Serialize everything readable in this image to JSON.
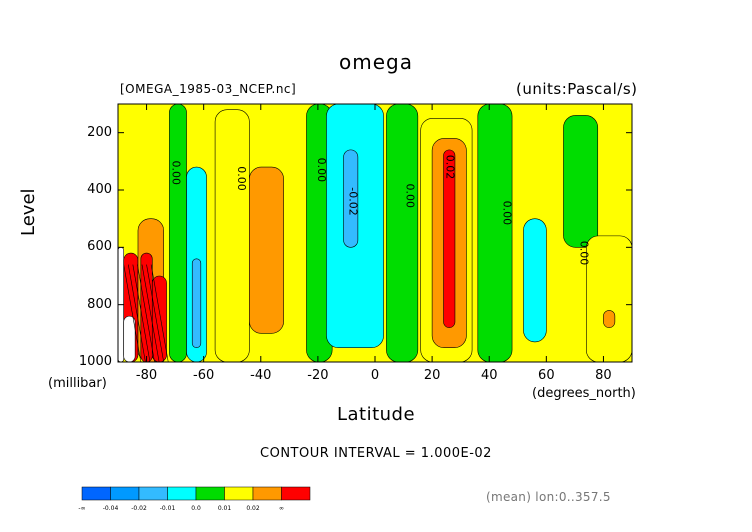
{
  "chart_data": {
    "type": "heatmap",
    "title": "omega",
    "file_label": "[OMEGA_1985-03_NCEP.nc]",
    "units_label": "(units:Pascal/s)",
    "xlabel": "Latitude",
    "x_unit": "(degrees_north)",
    "ylabel": "Level",
    "y_unit": "(millibar)",
    "xlim": [
      -90,
      90
    ],
    "ylim": [
      1000,
      100
    ],
    "x_ticks": [
      "-80",
      "-60",
      "-40",
      "-20",
      "0",
      "20",
      "40",
      "60",
      "80"
    ],
    "y_ticks": [
      "200",
      "400",
      "600",
      "800",
      "1000"
    ],
    "contour_interval": "CONTOUR INTERVAL = 1.000E-02",
    "footer": "(mean) lon:0..357.5",
    "contour_labels": [
      {
        "text": "0.00",
        "lat": -71,
        "level": 340
      },
      {
        "text": "0.00",
        "lat": -48,
        "level": 360
      },
      {
        "text": "0.00",
        "lat": -20,
        "level": 330
      },
      {
        "text": "-0.02",
        "lat": -9,
        "level": 440
      },
      {
        "text": "0.00",
        "lat": 11,
        "level": 420
      },
      {
        "text": "0.02",
        "lat": 25,
        "level": 320
      },
      {
        "text": "0.00",
        "lat": 45,
        "level": 480
      },
      {
        "text": "0.00",
        "lat": 72,
        "level": 620
      }
    ],
    "colorbar": {
      "labels": [
        "-∞",
        "-0.04",
        "-0.02",
        "-0.01",
        "0.0",
        "0.01",
        "0.02",
        "∞"
      ],
      "colors": [
        "#0066ff",
        "#0099ff",
        "#33bbff",
        "#00ffff",
        "#00dd00",
        "#ffff00",
        "#ff9900",
        "#ff0000"
      ]
    },
    "bands": [
      {
        "lat": [
          -90,
          -88
        ],
        "level": [
          600,
          1000
        ],
        "color": "#ffffff"
      },
      {
        "lat": [
          -88,
          -83
        ],
        "level": [
          620,
          1000
        ],
        "color": "#ff0000"
      },
      {
        "lat": [
          -88,
          -84
        ],
        "level": [
          840,
          1000
        ],
        "color": "#ffffff"
      },
      {
        "lat": [
          -83,
          -74
        ],
        "level": [
          500,
          1000
        ],
        "color": "#ff9900"
      },
      {
        "lat": [
          -82,
          -78
        ],
        "level": [
          620,
          1000
        ],
        "color": "#ff0000"
      },
      {
        "lat": [
          -78,
          -73
        ],
        "level": [
          700,
          1000
        ],
        "color": "#ff0000"
      },
      {
        "lat": [
          -72,
          -66
        ],
        "level": [
          100,
          1000
        ],
        "color": "#00dd00"
      },
      {
        "lat": [
          -66,
          -59
        ],
        "level": [
          320,
          1000
        ],
        "color": "#00ffff"
      },
      {
        "lat": [
          -64,
          -61
        ],
        "level": [
          640,
          950
        ],
        "color": "#33bbff"
      },
      {
        "lat": [
          -56,
          -44
        ],
        "level": [
          120,
          1000
        ],
        "color": "#ffff00"
      },
      {
        "lat": [
          -44,
          -32
        ],
        "level": [
          320,
          900
        ],
        "color": "#ff9900"
      },
      {
        "lat": [
          -24,
          -15
        ],
        "level": [
          100,
          1000
        ],
        "color": "#00dd00"
      },
      {
        "lat": [
          -17,
          3
        ],
        "level": [
          100,
          950
        ],
        "color": "#00ffff"
      },
      {
        "lat": [
          -11,
          -6
        ],
        "level": [
          260,
          600
        ],
        "color": "#33bbff"
      },
      {
        "lat": [
          4,
          15
        ],
        "level": [
          100,
          1000
        ],
        "color": "#00dd00"
      },
      {
        "lat": [
          16,
          34
        ],
        "level": [
          150,
          1000
        ],
        "color": "#ffff00"
      },
      {
        "lat": [
          20,
          32
        ],
        "level": [
          220,
          950
        ],
        "color": "#ff9900"
      },
      {
        "lat": [
          24,
          28
        ],
        "level": [
          260,
          880
        ],
        "color": "#ff0000"
      },
      {
        "lat": [
          36,
          48
        ],
        "level": [
          100,
          1000
        ],
        "color": "#00dd00"
      },
      {
        "lat": [
          52,
          60
        ],
        "level": [
          500,
          930
        ],
        "color": "#00ffff"
      },
      {
        "lat": [
          66,
          78
        ],
        "level": [
          140,
          600
        ],
        "color": "#00dd00"
      },
      {
        "lat": [
          74,
          90
        ],
        "level": [
          560,
          1000
        ],
        "color": "#ffff00"
      },
      {
        "lat": [
          80,
          84
        ],
        "level": [
          820,
          880
        ],
        "color": "#ff9900"
      }
    ]
  }
}
